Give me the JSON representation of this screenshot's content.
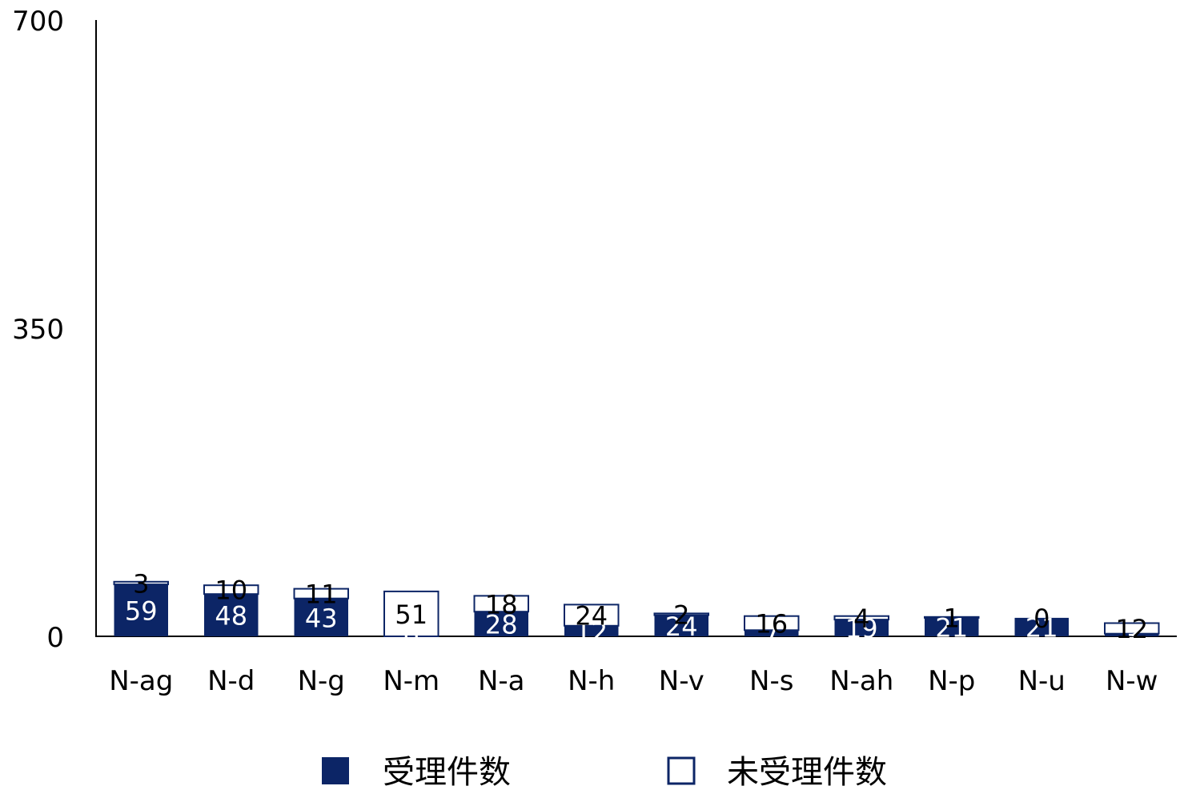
{
  "chart_data": {
    "type": "bar",
    "stacked": true,
    "categories": [
      "N-ag",
      "N-d",
      "N-g",
      "N-m",
      "N-a",
      "N-h",
      "N-v",
      "N-s",
      "N-ah",
      "N-p",
      "N-u",
      "N-w"
    ],
    "series": [
      {
        "name": "受理件数",
        "values": [
          59,
          48,
          43,
          0,
          28,
          12,
          24,
          7,
          19,
          21,
          21,
          3
        ],
        "labels": [
          "59",
          "48",
          "43",
          "0",
          "28",
          "12",
          "24",
          "7",
          "19",
          "21",
          "21",
          "3"
        ],
        "color": "#0c2566",
        "label_color": "#ffffff"
      },
      {
        "name": "未受理件数",
        "values": [
          3,
          10,
          11,
          51,
          18,
          24,
          2,
          16,
          4,
          1,
          0,
          12
        ],
        "labels": [
          "3",
          "10",
          "11",
          "51",
          "18",
          "24",
          "2",
          "16",
          "4",
          "1",
          "0",
          "12"
        ],
        "color": "#ffffff",
        "border_color": "#0c2566",
        "label_color": "#000000"
      }
    ],
    "yticks": [
      "0",
      "350",
      "700"
    ],
    "ylim": [
      0,
      700
    ],
    "grid": false,
    "legend_position": "bottom"
  }
}
